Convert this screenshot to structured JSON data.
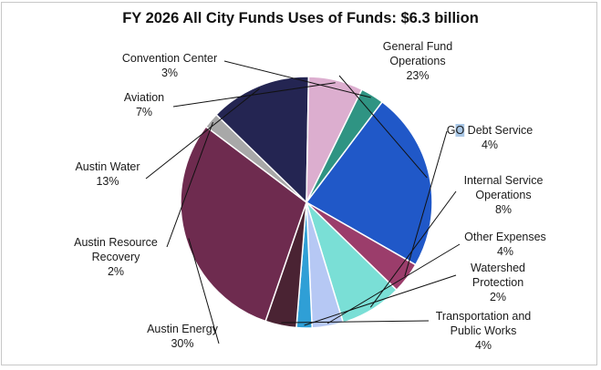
{
  "chart_data": {
    "type": "pie",
    "title": "FY 2026 All City Funds Uses of Funds: $6.3 billion",
    "unit": "%",
    "start_angle_deg": -53,
    "slices": [
      {
        "name": "General Fund\nOperations",
        "value": 23,
        "label": "23%",
        "color": "#2058c8"
      },
      {
        "name": "GO Debt Service",
        "value": 4,
        "label": "4%",
        "color": "#9b3d6b"
      },
      {
        "name": "Internal Service\nOperations",
        "value": 8,
        "label": "8%",
        "color": "#7adfd6"
      },
      {
        "name": "Other Expenses",
        "value": 4,
        "label": "4%",
        "color": "#b6c8f4"
      },
      {
        "name": "Watershed\nProtection",
        "value": 2,
        "label": "2%",
        "color": "#2f9fd6"
      },
      {
        "name": "Transportation and\nPublic Works",
        "value": 4,
        "label": "4%",
        "color": "#4a2333"
      },
      {
        "name": "Austin Energy",
        "value": 30,
        "label": "30%",
        "color": "#6e2b4f"
      },
      {
        "name": "Austin Resource\nRecovery",
        "value": 2,
        "label": "2%",
        "color": "#a8a8a8"
      },
      {
        "name": "Austin Water",
        "value": 13,
        "label": "13%",
        "color": "#242552"
      },
      {
        "name": "Aviation",
        "value": 7,
        "label": "7%",
        "color": "#dcaecf"
      },
      {
        "name": "Convention Center",
        "value": 3,
        "label": "3%",
        "color": "#2f9483"
      }
    ]
  }
}
